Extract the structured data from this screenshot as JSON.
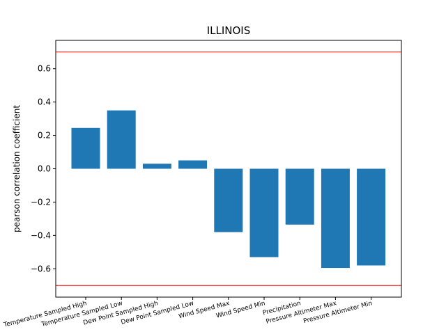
{
  "chart_data": {
    "type": "bar",
    "title": "ILLINOIS",
    "xlabel": "",
    "ylabel": "pearson correlation coefficient",
    "categories": [
      "Temperature Sampled High",
      "Temperature Sampled Low",
      "Dew Point Sampled High",
      "Dew Point Sampled Low",
      "Wind Speed Max",
      "Wind Speed Min",
      "Precipitation",
      "Pressure Altimeter Max",
      "Pressure Altimeter Min"
    ],
    "values": [
      0.245,
      0.35,
      0.03,
      0.05,
      -0.38,
      -0.53,
      -0.335,
      -0.595,
      -0.58
    ],
    "ylim": [
      -0.77,
      0.77
    ],
    "yticks": [
      -0.6,
      -0.4,
      -0.2,
      0.0,
      0.2,
      0.4,
      0.6
    ],
    "ytick_labels": [
      "−0.6",
      "−0.4",
      "−0.2",
      "0.0",
      "0.2",
      "0.4",
      "0.6"
    ],
    "reference_lines": [
      0.7,
      -0.7
    ],
    "reference_line_color": "#ff0000",
    "bar_color": "#1f77b4",
    "grid": false,
    "legend": "none"
  }
}
